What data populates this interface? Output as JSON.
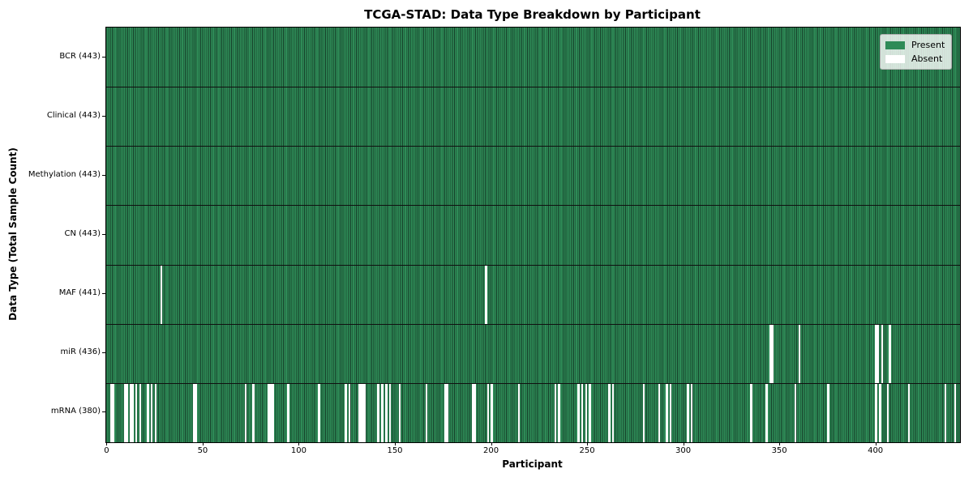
{
  "title": "TCGA-STAD: Data Type Breakdown by Participant",
  "x_axis": {
    "label": "Participant",
    "tick_values": [
      0,
      50,
      100,
      150,
      200,
      250,
      300,
      350,
      400
    ]
  },
  "y_axis": {
    "label": "Data Type (Total Sample Count)"
  },
  "legend": {
    "position": "upper right",
    "items": [
      {
        "label": "Present",
        "color": "#2e8b57"
      },
      {
        "label": "Absent",
        "color": "#ffffff"
      }
    ]
  },
  "colors": {
    "present": "#2e8b57",
    "absent": "#ffffff",
    "bar_edge_dark": "#16402a",
    "row_divider": "#101010",
    "spine": "#000000"
  },
  "chart_data": {
    "type": "heatmap",
    "title": "TCGA-STAD: Data Type Breakdown by Participant",
    "xlabel": "Participant",
    "ylabel": "Data Type (Total Sample Count)",
    "x_range": [
      0,
      442
    ],
    "n_participants": 443,
    "encoding": "each column is one participant; green cell = data type present, white cell = data type absent",
    "legend_position": "upper right",
    "rows": [
      {
        "label": "BCR (443)",
        "data_type": "BCR",
        "total": 443,
        "absent": []
      },
      {
        "label": "Clinical (443)",
        "data_type": "Clinical",
        "total": 443,
        "absent": []
      },
      {
        "label": "Methylation (443)",
        "data_type": "Methylation",
        "total": 443,
        "absent": []
      },
      {
        "label": "CN (443)",
        "data_type": "CN",
        "total": 443,
        "absent": []
      },
      {
        "label": "MAF (441)",
        "data_type": "MAF",
        "total": 441,
        "absent": [
          28,
          197
        ]
      },
      {
        "label": "miR (436)",
        "data_type": "miR",
        "total": 436,
        "absent": [
          345,
          346,
          360,
          400,
          401,
          403,
          407
        ]
      },
      {
        "label": "mRNA (380)",
        "data_type": "mRNA",
        "total": 380,
        "absent": [
          2,
          3,
          9,
          10,
          12,
          13,
          15,
          17,
          21,
          23,
          25,
          45,
          46,
          72,
          76,
          84,
          85,
          86,
          94,
          110,
          124,
          126,
          131,
          132,
          133,
          134,
          141,
          143,
          145,
          147,
          152,
          166,
          176,
          177,
          190,
          191,
          198,
          200,
          214,
          233,
          235,
          245,
          247,
          249,
          251,
          261,
          263,
          279,
          287,
          291,
          293,
          302,
          304,
          335,
          343,
          358,
          375,
          400,
          402,
          406,
          417,
          436,
          441
        ]
      }
    ]
  }
}
